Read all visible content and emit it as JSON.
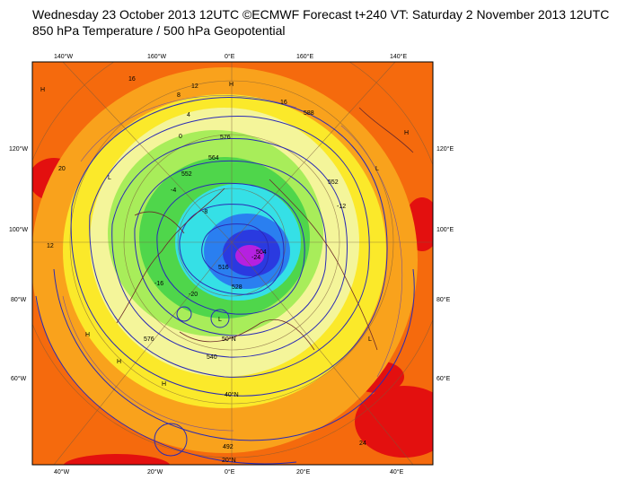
{
  "header": {
    "line1": "Wednesday 23 October 2013 12UTC ©ECMWF Forecast t+240 VT: Saturday 2 November 2013 12UTC",
    "line2": "850 hPa Temperature / 500 hPa Geopotential"
  },
  "map": {
    "projection": "polar-stereographic-north",
    "top_longitude_labels": [
      "140°W",
      "160°W",
      "0°E",
      "160°E",
      "140°E"
    ],
    "bottom_longitude_labels": [
      "40°W",
      "20°W",
      "0°E",
      "20°E",
      "40°E"
    ],
    "left_latitude_labels": [
      "120°W",
      "100°W",
      "80°W",
      "60°W"
    ],
    "right_latitude_labels": [
      "120°E",
      "100°E",
      "80°E",
      "60°E"
    ],
    "inner_latitude_labels": [
      "40°N",
      "50°N",
      "20°N"
    ],
    "colors": {
      "warm_red": "#e3100f",
      "orange": "#f56a0d",
      "light_orange": "#f9a21c",
      "yellow": "#fbe92a",
      "pale_yellow": "#f4f59a",
      "light_green": "#a8ed5a",
      "green": "#4fd64b",
      "cyan": "#35e0e6",
      "blue": "#2a7ff0",
      "dark_blue": "#2a3ae0",
      "magenta": "#b521e0",
      "contour": "#2a2ab5"
    },
    "geopotential_labels": [
      "588",
      "576",
      "564",
      "552",
      "540",
      "528",
      "516",
      "504",
      "492",
      "552",
      "576"
    ],
    "temperature_labels": [
      "16",
      "12",
      "8",
      "4",
      "0",
      "-4",
      "-8",
      "-12",
      "-16",
      "-20",
      "-24",
      "20",
      "24",
      "16",
      "12"
    ],
    "pressure_center_marks": [
      "H",
      "L",
      "H",
      "L",
      "H",
      "L",
      "H",
      "H",
      "L",
      "H"
    ]
  }
}
